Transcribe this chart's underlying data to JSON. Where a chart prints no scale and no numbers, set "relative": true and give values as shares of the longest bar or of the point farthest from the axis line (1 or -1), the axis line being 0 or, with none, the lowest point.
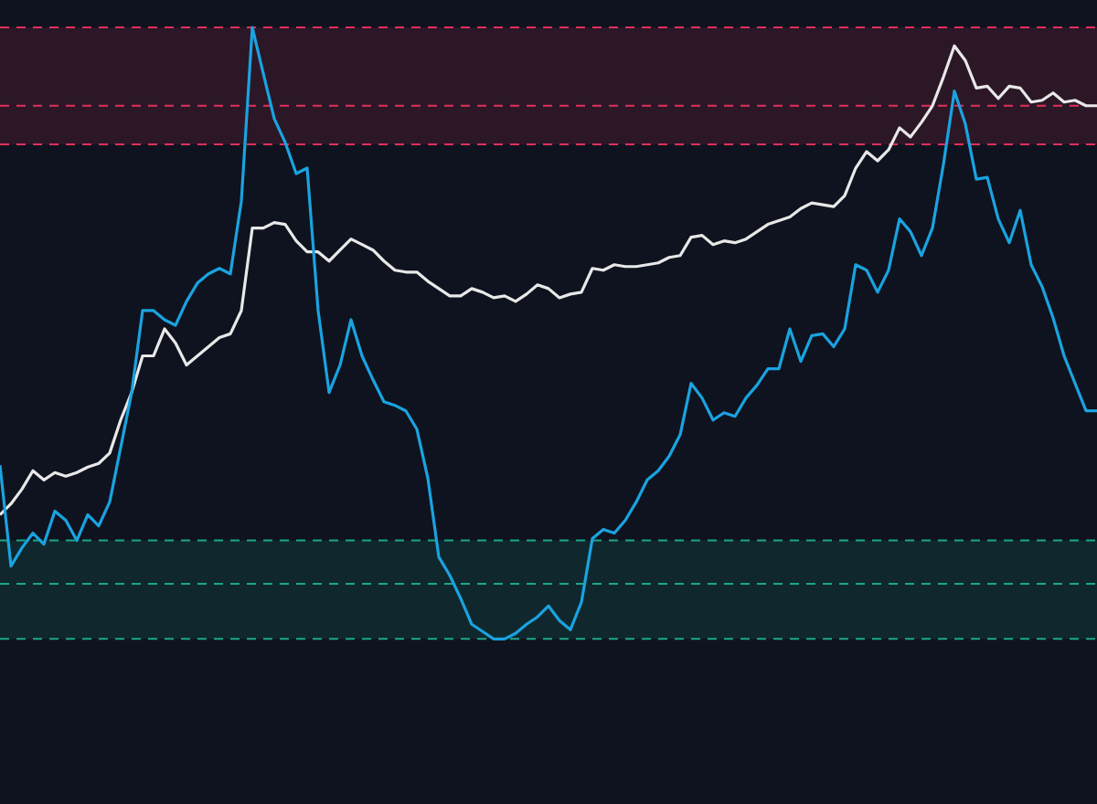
{
  "chart_data": {
    "type": "line",
    "relative": true,
    "categories": [
      null,
      null,
      null,
      null,
      null,
      null,
      null,
      null,
      null,
      null,
      null,
      null,
      null,
      null,
      null,
      null,
      null,
      null,
      null,
      null,
      null,
      null,
      null,
      null,
      null,
      null,
      null,
      null,
      null,
      null,
      null,
      null,
      null,
      null,
      null,
      null,
      null,
      null,
      null,
      null,
      null,
      null,
      null,
      null,
      null,
      null,
      null,
      null,
      null,
      null,
      null,
      null,
      null,
      null,
      null,
      null,
      null,
      null,
      null,
      null,
      null,
      null,
      null,
      null,
      null,
      null,
      null,
      null,
      null,
      null,
      null,
      null,
      null,
      null,
      null,
      null,
      null,
      null,
      null,
      null,
      null,
      null,
      null,
      null,
      null,
      null,
      null,
      null,
      null,
      null,
      null,
      null,
      null,
      null,
      null,
      null,
      null,
      null,
      null,
      null,
      null
    ],
    "series": [
      {
        "color": "#1aa3e0",
        "values": [
          0.284,
          0.119,
          0.149,
          0.173,
          0.155,
          0.209,
          0.194,
          0.161,
          0.203,
          0.185,
          0.224,
          0.313,
          0.403,
          0.537,
          0.537,
          0.522,
          0.513,
          0.552,
          0.582,
          0.597,
          0.606,
          0.597,
          0.716,
          1,
          0.925,
          0.851,
          0.812,
          0.761,
          0.77,
          0.537,
          0.403,
          0.448,
          0.522,
          0.463,
          0.424,
          0.388,
          0.382,
          0.373,
          0.343,
          0.263,
          0.134,
          0.104,
          0.066,
          0.024,
          0.012,
          0,
          0,
          0.009,
          0.024,
          0.036,
          0.054,
          0.03,
          0.015,
          0.06,
          0.164,
          0.179,
          0.173,
          0.194,
          0.224,
          0.26,
          0.275,
          0.299,
          0.334,
          0.418,
          0.394,
          0.358,
          0.37,
          0.364,
          0.394,
          0.415,
          0.442,
          0.442,
          0.507,
          0.454,
          0.496,
          0.499,
          0.478,
          0.507,
          0.612,
          0.603,
          0.567,
          0.603,
          0.687,
          0.666,
          0.627,
          0.672,
          0.776,
          0.896,
          0.842,
          0.752,
          0.755,
          0.687,
          0.648,
          0.701,
          0.612,
          0.576,
          0.525,
          0.463,
          0.418,
          0.373,
          0.373
        ]
      },
      {
        "color": "#e8e8e8",
        "values": [
          0.203,
          0.221,
          0.245,
          0.275,
          0.26,
          0.272,
          0.266,
          0.272,
          0.281,
          0.287,
          0.304,
          0.358,
          0.403,
          0.463,
          0.463,
          0.507,
          0.484,
          0.448,
          0.463,
          0.478,
          0.493,
          0.499,
          0.537,
          0.672,
          0.672,
          0.681,
          0.678,
          0.651,
          0.633,
          0.633,
          0.618,
          0.636,
          0.654,
          0.645,
          0.636,
          0.618,
          0.603,
          0.6,
          0.6,
          0.585,
          0.573,
          0.561,
          0.561,
          0.573,
          0.567,
          0.558,
          0.561,
          0.552,
          0.564,
          0.579,
          0.573,
          0.558,
          0.564,
          0.567,
          0.606,
          0.603,
          0.612,
          0.609,
          0.609,
          0.612,
          0.615,
          0.624,
          0.627,
          0.657,
          0.66,
          0.645,
          0.651,
          0.648,
          0.654,
          0.666,
          0.678,
          0.684,
          0.69,
          0.704,
          0.713,
          0.71,
          0.707,
          0.725,
          0.77,
          0.797,
          0.782,
          0.8,
          0.836,
          0.821,
          0.845,
          0.872,
          0.919,
          0.97,
          0.946,
          0.901,
          0.904,
          0.884,
          0.904,
          0.901,
          0.878,
          0.881,
          0.893,
          0.878,
          0.881,
          0.872,
          0.872
        ]
      }
    ],
    "bands": [
      {
        "axis": "y",
        "from": 0.809,
        "to": 1,
        "color": "#e0305a"
      },
      {
        "axis": "y",
        "from": 0,
        "to": 0.161,
        "color": "#1aa88a"
      }
    ],
    "ref_lines": [
      {
        "axis": "y",
        "value": 1,
        "color": "#e0305a",
        "line_style": "dashed"
      },
      {
        "axis": "y",
        "value": 0.872,
        "color": "#e0305a",
        "line_style": "dashed"
      },
      {
        "axis": "y",
        "value": 0.809,
        "color": "#e0305a",
        "line_style": "dashed"
      },
      {
        "axis": "y",
        "value": 0.161,
        "color": "#1aa88a",
        "line_style": "dashed"
      },
      {
        "axis": "y",
        "value": 0.09,
        "color": "#1aa88a",
        "line_style": "dashed"
      },
      {
        "axis": "y",
        "value": 0,
        "color": "#1aa88a",
        "line_style": "dashed"
      }
    ],
    "legend": false,
    "grid": false,
    "marker": "none",
    "line_style": "solid"
  }
}
